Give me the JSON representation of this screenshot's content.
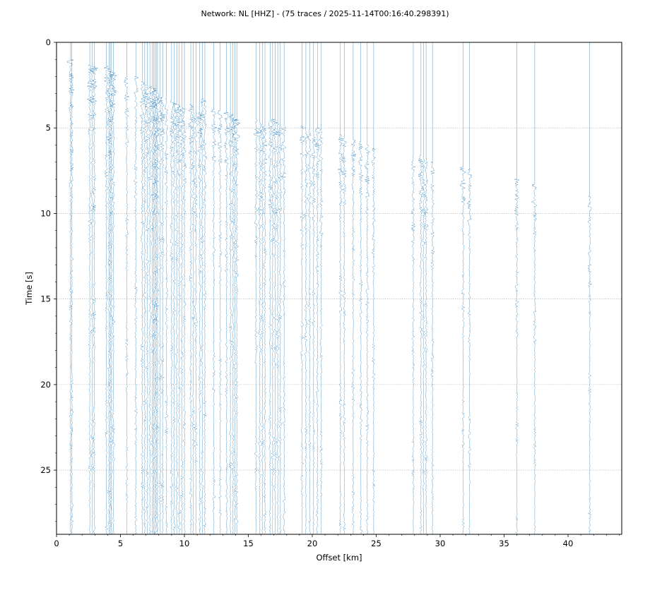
{
  "chart_data": {
    "type": "scatter",
    "subtype": "seismic-record-section",
    "title": "Network: NL [HHZ] - (75 traces / 2025-11-14T00:16:40.298391)",
    "xlabel": "Offset [km]",
    "ylabel": "Time [s]",
    "xlim": [
      0,
      44.2
    ],
    "ylim": [
      28.75,
      0
    ],
    "y_inverted": true,
    "xticks": [
      0,
      5,
      10,
      15,
      20,
      25,
      30,
      35,
      40
    ],
    "yticks": [
      0,
      5,
      10,
      15,
      20,
      25
    ],
    "xtick_labels": [
      "0",
      "5",
      "10",
      "15",
      "20",
      "25",
      "30",
      "35",
      "40"
    ],
    "ytick_labels": [
      "0",
      "5",
      "10",
      "15",
      "20",
      "25"
    ],
    "horizontal_grid": true,
    "trace_color": "#1f77b4",
    "trace_count": 75,
    "trace_offsets_km": [
      1.1,
      1.2,
      2.6,
      2.8,
      2.95,
      3.9,
      4.1,
      4.2,
      4.3,
      4.45,
      5.5,
      6.2,
      6.7,
      6.9,
      7.1,
      7.3,
      7.5,
      7.6,
      7.7,
      7.8,
      7.9,
      8.1,
      8.3,
      8.6,
      9.0,
      9.2,
      9.4,
      9.6,
      9.8,
      10.0,
      10.5,
      10.7,
      10.9,
      11.2,
      11.4,
      11.6,
      12.3,
      12.8,
      13.3,
      13.6,
      13.8,
      13.95,
      14.1,
      15.6,
      15.9,
      16.1,
      16.3,
      16.7,
      16.9,
      17.1,
      17.3,
      17.5,
      17.8,
      19.2,
      19.5,
      19.8,
      20.1,
      20.4,
      20.7,
      22.2,
      22.5,
      23.2,
      23.8,
      24.3,
      24.8,
      27.9,
      28.5,
      28.7,
      28.9,
      29.4,
      31.8,
      32.3,
      36.0,
      37.4,
      41.7
    ],
    "first_arrival_s": [
      1.0,
      2.2,
      1.3,
      1.4,
      1.5,
      1.4,
      1.5,
      1.6,
      1.7,
      1.9,
      2.0,
      2.0,
      2.3,
      2.4,
      2.5,
      2.6,
      2.7,
      2.8,
      2.9,
      3.0,
      3.0,
      3.1,
      3.2,
      3.3,
      3.4,
      3.5,
      3.6,
      3.7,
      3.8,
      3.9,
      3.6,
      3.8,
      4.0,
      4.1,
      3.3,
      3.4,
      3.9,
      4.0,
      4.1,
      4.2,
      4.3,
      4.4,
      4.5,
      4.5,
      4.7,
      4.8,
      4.9,
      4.4,
      4.5,
      4.6,
      4.7,
      4.8,
      4.9,
      4.9,
      5.0,
      5.1,
      5.2,
      5.0,
      5.1,
      5.4,
      5.5,
      5.7,
      5.8,
      6.0,
      6.2,
      6.7,
      6.6,
      6.7,
      6.8,
      7.0,
      7.3,
      7.4,
      8.0,
      8.3,
      9.0
    ]
  }
}
